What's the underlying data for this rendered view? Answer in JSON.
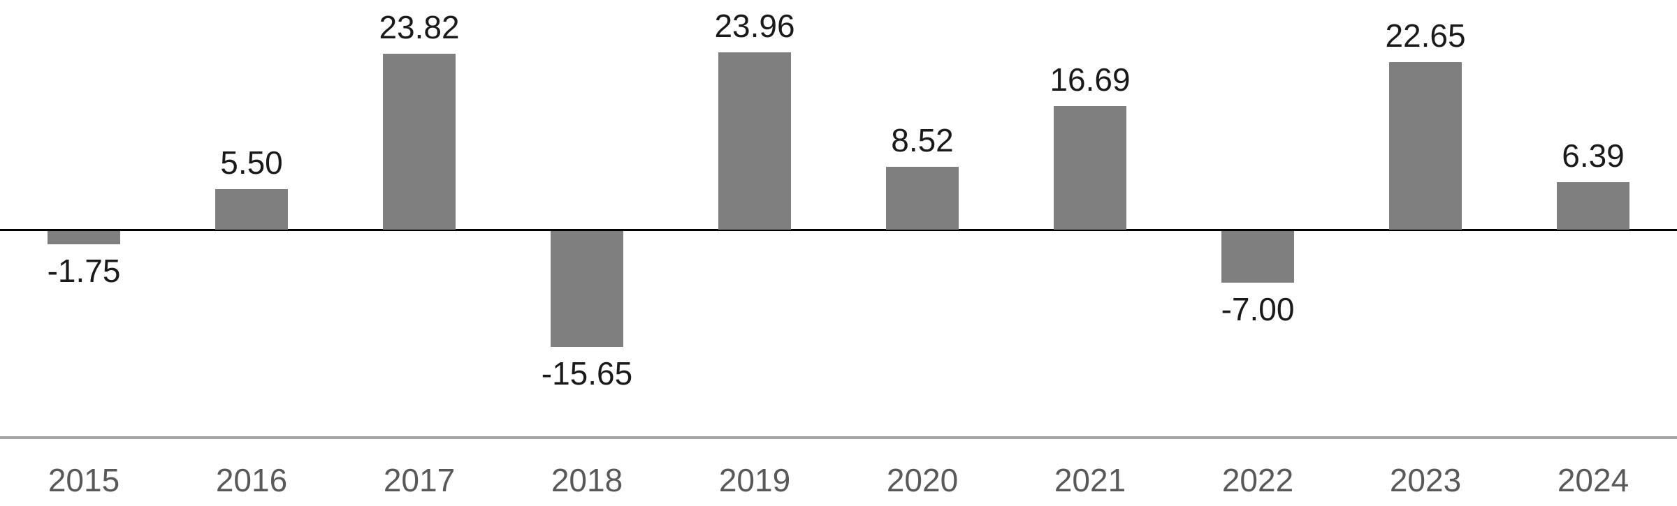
{
  "chart_data": {
    "type": "bar",
    "title": "",
    "xlabel": "",
    "ylabel": "",
    "categories": [
      "2015",
      "2016",
      "2017",
      "2018",
      "2019",
      "2020",
      "2021",
      "2022",
      "2023",
      "2024"
    ],
    "values": [
      -1.75,
      5.5,
      23.82,
      -15.65,
      23.96,
      8.52,
      16.69,
      -7.0,
      22.65,
      6.39
    ],
    "data_labels": [
      "-1.75",
      "5.50",
      "23.82",
      "-15.65",
      "23.96",
      "8.52",
      "16.69",
      "-7.00",
      "22.65",
      "6.39"
    ],
    "ylim": [
      -18,
      26
    ],
    "grid": false,
    "legend": false,
    "colors": {
      "bar": "#7f7f7f",
      "zero_axis": "#000000",
      "x_axis_line": "#a6a6a6",
      "value_label": "#1a1a1a",
      "tick_label": "#595959",
      "background": "#ffffff"
    }
  }
}
